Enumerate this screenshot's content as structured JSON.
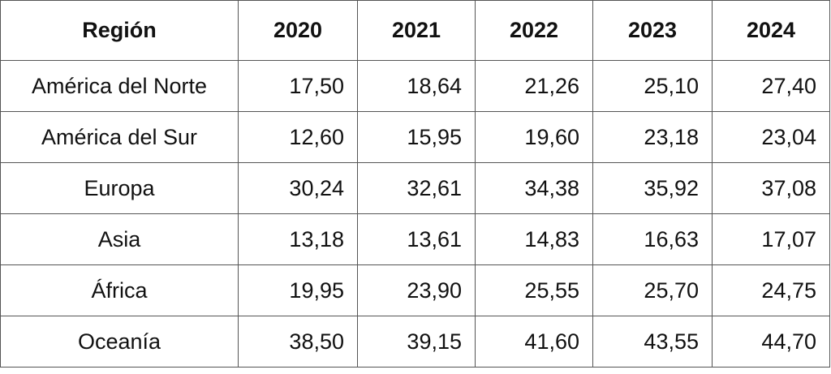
{
  "table": {
    "header": [
      "Región",
      "2020",
      "2021",
      "2022",
      "2023",
      "2024"
    ],
    "rows": [
      [
        "América del Norte",
        "17,50",
        "18,64",
        "21,26",
        "25,10",
        "27,40"
      ],
      [
        "América del Sur",
        "12,60",
        "15,95",
        "19,60",
        "23,18",
        "23,04"
      ],
      [
        "Europa",
        "30,24",
        "32,61",
        "34,38",
        "35,92",
        "37,08"
      ],
      [
        "Asia",
        "13,18",
        "13,61",
        "14,83",
        "16,63",
        "17,07"
      ],
      [
        "África",
        "19,95",
        "23,90",
        "25,55",
        "25,70",
        "24,75"
      ],
      [
        "Oceanía",
        "38,50",
        "39,15",
        "41,60",
        "43,55",
        "44,70"
      ]
    ]
  }
}
